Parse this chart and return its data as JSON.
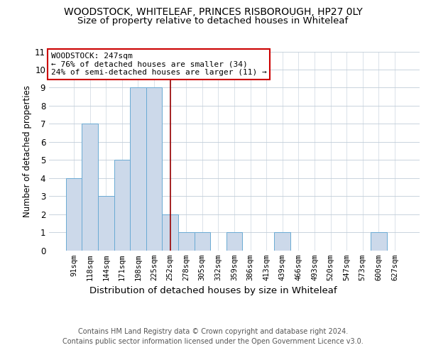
{
  "title1": "WOODSTOCK, WHITELEAF, PRINCES RISBOROUGH, HP27 0LY",
  "title2": "Size of property relative to detached houses in Whiteleaf",
  "xlabel": "Distribution of detached houses by size in Whiteleaf",
  "ylabel": "Number of detached properties",
  "categories": [
    "91sqm",
    "118sqm",
    "144sqm",
    "171sqm",
    "198sqm",
    "225sqm",
    "252sqm",
    "278sqm",
    "305sqm",
    "332sqm",
    "359sqm",
    "386sqm",
    "413sqm",
    "439sqm",
    "466sqm",
    "493sqm",
    "520sqm",
    "547sqm",
    "573sqm",
    "600sqm",
    "627sqm"
  ],
  "values": [
    4,
    7,
    3,
    5,
    9,
    9,
    2,
    1,
    1,
    0,
    1,
    0,
    0,
    1,
    0,
    0,
    0,
    0,
    0,
    1,
    0
  ],
  "bar_color": "#ccd9ea",
  "bar_edge_color": "#6aaad4",
  "vline_x_index": 6,
  "vline_color": "#990000",
  "ylim_max": 11,
  "yticks": [
    0,
    1,
    2,
    3,
    4,
    5,
    6,
    7,
    8,
    9,
    10,
    11
  ],
  "annotation_line1": "WOODSTOCK: 247sqm",
  "annotation_line2": "← 76% of detached houses are smaller (34)",
  "annotation_line3": "24% of semi-detached houses are larger (11) →",
  "annotation_box_edge": "#cc0000",
  "footer1": "Contains HM Land Registry data © Crown copyright and database right 2024.",
  "footer2": "Contains public sector information licensed under the Open Government Licence v3.0.",
  "bg_color": "#ffffff",
  "grid_color": "#c0ccd8",
  "title1_fontsize": 10,
  "title2_fontsize": 9.5,
  "xlabel_fontsize": 9.5,
  "ylabel_fontsize": 8.5,
  "tick_fontsize": 7.5,
  "ytick_fontsize": 8.5,
  "annot_fontsize": 8,
  "footer_fontsize": 7
}
